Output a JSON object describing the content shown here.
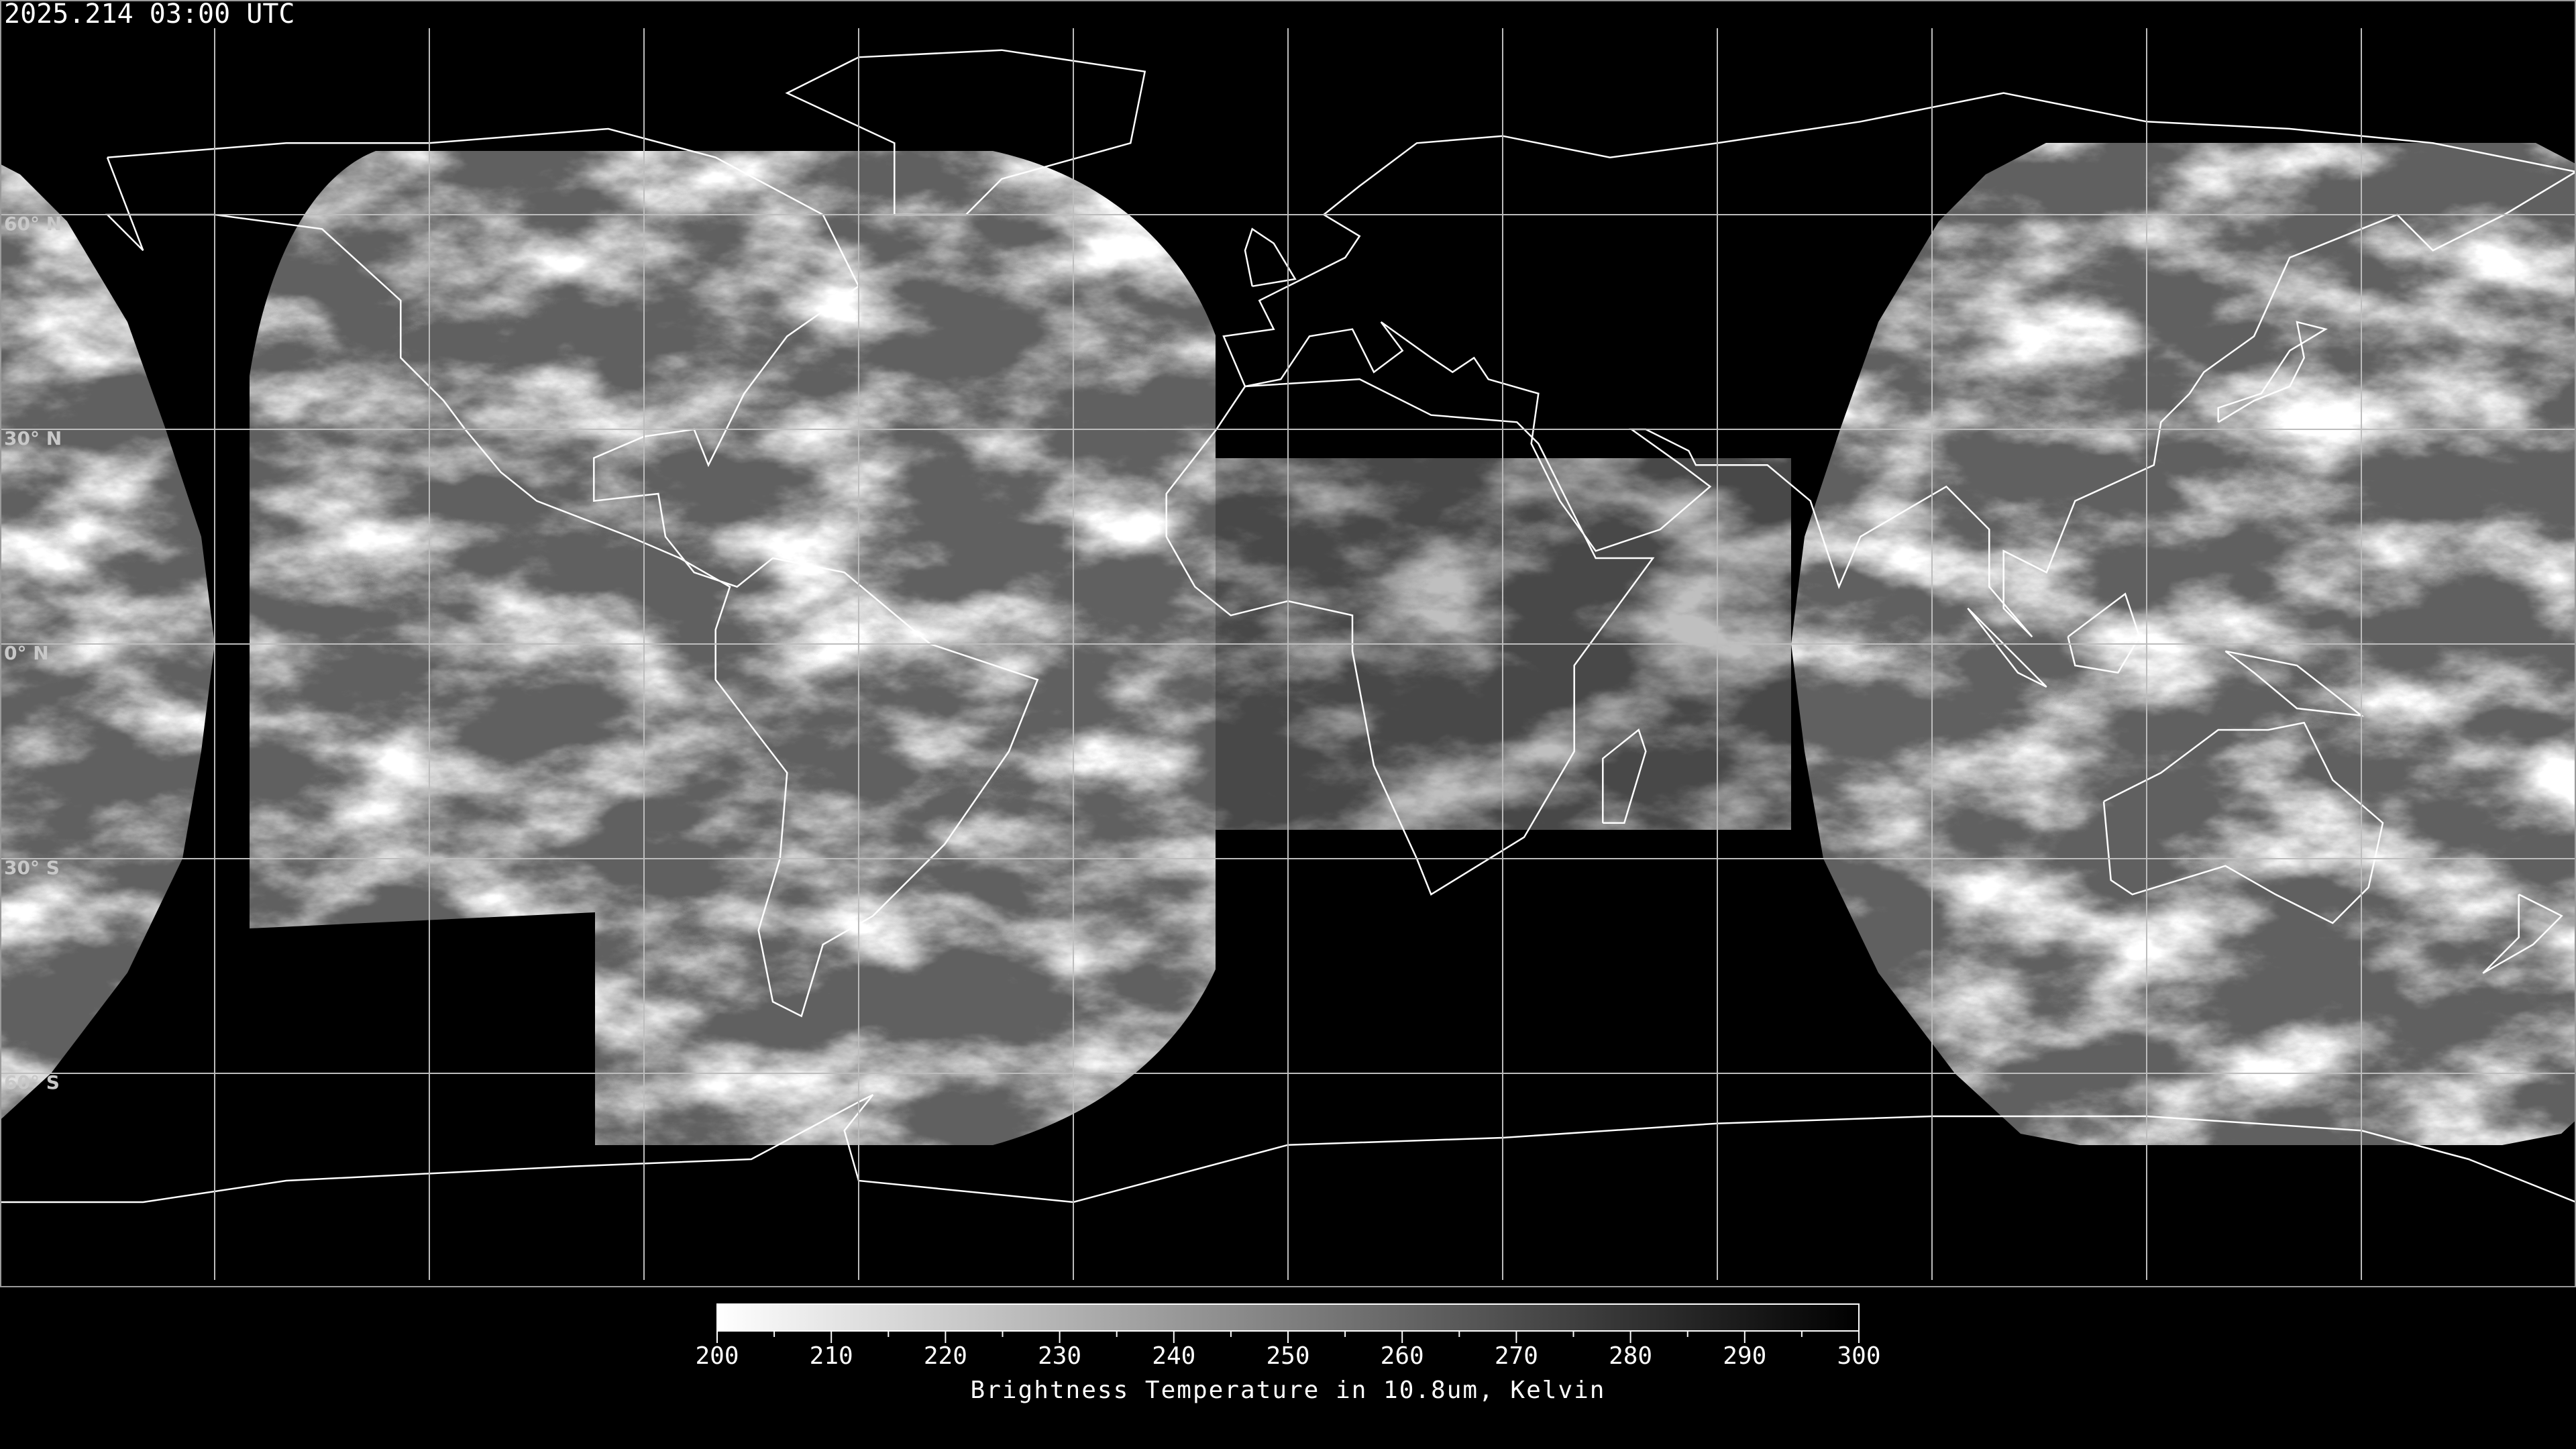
{
  "header": {
    "timestamp": "2025.214 03:00 UTC"
  },
  "map": {
    "projection": "equirectangular",
    "lon_range": [
      -180,
      180
    ],
    "lat_range": [
      -90,
      90
    ],
    "grid_step_deg": 30,
    "lat_labels": [
      "60° N",
      "30° N",
      "0° N",
      "30° S",
      "60° S"
    ],
    "colors": {
      "background": "#000000",
      "coastline": "#ffffff",
      "grid": "#bdbdbd"
    }
  },
  "colorbar": {
    "min": 200,
    "max": 300,
    "ticks": [
      "200",
      "210",
      "220",
      "230",
      "240",
      "250",
      "260",
      "270",
      "280",
      "290",
      "300"
    ],
    "minor_step": 5,
    "label": "Brightness Temperature in 10.8um, Kelvin",
    "colors": {
      "low": "#ffffff",
      "high": "#000000"
    }
  }
}
